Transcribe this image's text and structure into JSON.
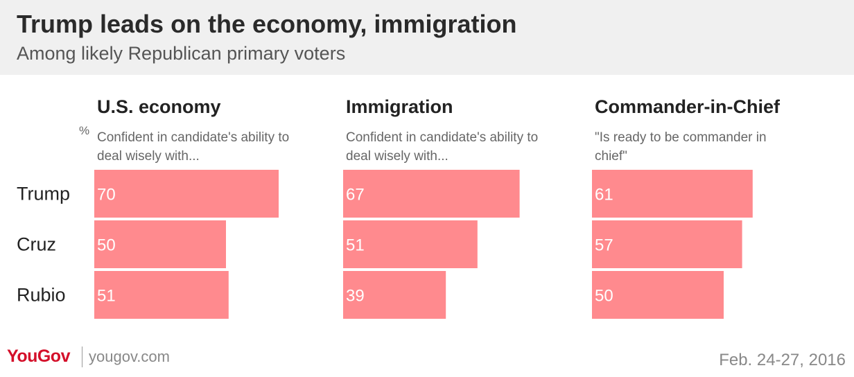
{
  "header": {
    "title": "Trump leads on the economy, immigration",
    "subtitle": "Among likely Republican primary voters"
  },
  "footer": {
    "logo": "YouGov",
    "url": "yougov.com",
    "date": "Feb. 24-27, 2016"
  },
  "colors": {
    "bar": "#ff8a8e",
    "header_bg": "#f0f0f0",
    "logo": "#d4102a"
  },
  "chart_data": [
    {
      "type": "bar",
      "orientation": "horizontal",
      "title": "U.S. economy",
      "description": [
        "Confident in candidate's ability to",
        "deal wisely with..."
      ],
      "unit": "%",
      "categories": [
        "Trump",
        "Cruz",
        "Rubio"
      ],
      "values": [
        70,
        50,
        51
      ],
      "xlim": [
        0,
        100
      ]
    },
    {
      "type": "bar",
      "orientation": "horizontal",
      "title": "Immigration",
      "description": [
        "Confident in candidate's ability to",
        "deal wisely with..."
      ],
      "categories": [
        "Trump",
        "Cruz",
        "Rubio"
      ],
      "values": [
        67,
        51,
        39
      ],
      "xlim": [
        0,
        100
      ]
    },
    {
      "type": "bar",
      "orientation": "horizontal",
      "title": "Commander-in-Chief",
      "description": [
        "\"Is ready to be commander in",
        "chief\""
      ],
      "categories": [
        "Trump",
        "Cruz",
        "Rubio"
      ],
      "values": [
        61,
        57,
        50
      ],
      "xlim": [
        0,
        100
      ]
    }
  ]
}
